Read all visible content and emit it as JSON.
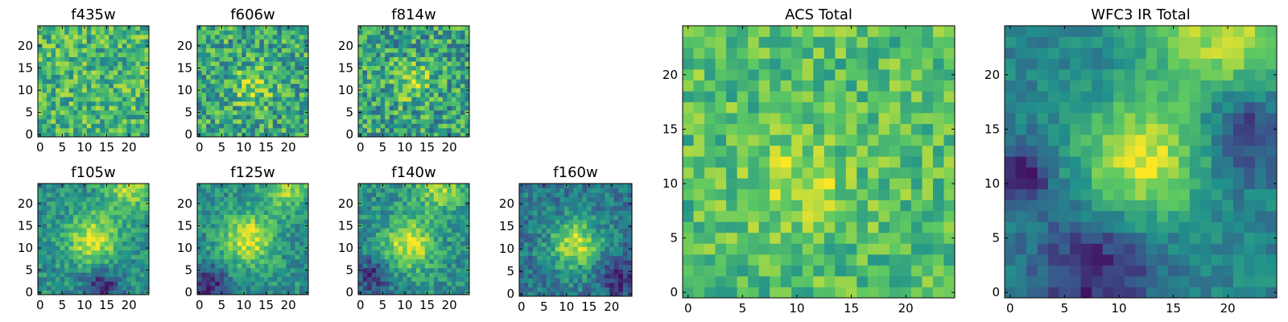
{
  "figure": {
    "colormap": "viridis",
    "colormap_colors": [
      "#440154",
      "#3b528b",
      "#21918c",
      "#5ec962",
      "#fde725"
    ]
  },
  "chart_data": [
    {
      "type": "heatmap",
      "title": "f435w",
      "grid_size": 25,
      "xlim": [
        -0.5,
        24.5
      ],
      "ylim": [
        -0.5,
        24.5
      ],
      "xticks": [
        0,
        5,
        10,
        15,
        20
      ],
      "yticks": [
        0,
        5,
        10,
        15,
        20
      ],
      "xlabel": "",
      "ylabel": "",
      "seed": 11,
      "pattern": {
        "base": 0.66,
        "noise": 0.24,
        "blobs": []
      }
    },
    {
      "type": "heatmap",
      "title": "f606w",
      "grid_size": 25,
      "xlim": [
        -0.5,
        24.5
      ],
      "ylim": [
        -0.5,
        24.5
      ],
      "xticks": [
        0,
        5,
        10,
        15,
        20
      ],
      "yticks": [
        0,
        5,
        10,
        15,
        20
      ],
      "xlabel": "",
      "ylabel": "",
      "seed": 23,
      "pattern": {
        "base": 0.6,
        "noise": 0.26,
        "blobs": [
          {
            "x": 12,
            "y": 11,
            "amp": 0.25,
            "r": 3
          }
        ]
      }
    },
    {
      "type": "heatmap",
      "title": "f814w",
      "grid_size": 25,
      "xlim": [
        -0.5,
        24.5
      ],
      "ylim": [
        -0.5,
        24.5
      ],
      "xticks": [
        0,
        5,
        10,
        15,
        20
      ],
      "yticks": [
        0,
        5,
        10,
        15,
        20
      ],
      "xlabel": "",
      "ylabel": "",
      "seed": 37,
      "pattern": {
        "base": 0.58,
        "noise": 0.27,
        "blobs": [
          {
            "x": 12,
            "y": 12,
            "amp": 0.25,
            "r": 3
          }
        ]
      }
    },
    {
      "type": "heatmap",
      "title": "f105w",
      "grid_size": 25,
      "xlim": [
        -0.5,
        24.5
      ],
      "ylim": [
        -0.5,
        24.5
      ],
      "xticks": [
        0,
        5,
        10,
        15,
        20
      ],
      "yticks": [
        0,
        5,
        10,
        15,
        20
      ],
      "xlabel": "",
      "ylabel": "",
      "seed": 41,
      "pattern": {
        "base": 0.5,
        "noise": 0.15,
        "blobs": [
          {
            "x": 12,
            "y": 12,
            "amp": 0.45,
            "r": 4
          },
          {
            "x": 20,
            "y": 24,
            "amp": 0.35,
            "r": 4
          },
          {
            "x": 14,
            "y": 1,
            "amp": -0.4,
            "r": 3
          }
        ]
      }
    },
    {
      "type": "heatmap",
      "title": "f125w",
      "grid_size": 25,
      "xlim": [
        -0.5,
        24.5
      ],
      "ylim": [
        -0.5,
        24.5
      ],
      "xticks": [
        0,
        5,
        10,
        15,
        20
      ],
      "yticks": [
        0,
        5,
        10,
        15,
        20
      ],
      "xlabel": "",
      "ylabel": "",
      "seed": 53,
      "pattern": {
        "base": 0.5,
        "noise": 0.15,
        "blobs": [
          {
            "x": 11,
            "y": 12,
            "amp": 0.45,
            "r": 4
          },
          {
            "x": 20,
            "y": 24,
            "amp": 0.35,
            "r": 4
          },
          {
            "x": 2,
            "y": 2,
            "amp": -0.4,
            "r": 3
          }
        ]
      }
    },
    {
      "type": "heatmap",
      "title": "f140w",
      "grid_size": 25,
      "xlim": [
        -0.5,
        24.5
      ],
      "ylim": [
        -0.5,
        24.5
      ],
      "xticks": [
        0,
        5,
        10,
        15,
        20
      ],
      "yticks": [
        0,
        5,
        10,
        15,
        20
      ],
      "xlabel": "",
      "ylabel": "",
      "seed": 67,
      "pattern": {
        "base": 0.5,
        "noise": 0.16,
        "blobs": [
          {
            "x": 11,
            "y": 11,
            "amp": 0.45,
            "r": 4
          },
          {
            "x": 18,
            "y": 24,
            "amp": 0.35,
            "r": 4
          },
          {
            "x": 3,
            "y": 4,
            "amp": -0.35,
            "r": 3
          }
        ]
      }
    },
    {
      "type": "heatmap",
      "title": "f160w",
      "grid_size": 25,
      "xlim": [
        -0.5,
        24.5
      ],
      "ylim": [
        -0.5,
        24.5
      ],
      "xticks": [
        0,
        5,
        10,
        15,
        20
      ],
      "yticks": [
        0,
        5,
        10,
        15,
        20
      ],
      "xlabel": "",
      "ylabel": "",
      "seed": 79,
      "pattern": {
        "base": 0.4,
        "noise": 0.16,
        "blobs": [
          {
            "x": 12,
            "y": 11,
            "amp": 0.5,
            "r": 4
          },
          {
            "x": 22,
            "y": 4,
            "amp": -0.3,
            "r": 3
          }
        ]
      }
    },
    {
      "type": "heatmap",
      "title": "ACS Total",
      "grid_size": 25,
      "xlim": [
        -0.5,
        24.5
      ],
      "ylim": [
        -0.5,
        24.5
      ],
      "xticks": [
        0,
        5,
        10,
        15,
        20
      ],
      "yticks": [
        0,
        5,
        10,
        15,
        20
      ],
      "xlabel": "",
      "ylabel": "",
      "seed": 91,
      "pattern": {
        "base": 0.7,
        "noise": 0.18,
        "blobs": [
          {
            "x": 10,
            "y": 10,
            "amp": 0.2,
            "r": 3
          }
        ]
      }
    },
    {
      "type": "heatmap",
      "title": "WFC3 IR Total",
      "grid_size": 25,
      "xlim": [
        -0.5,
        24.5
      ],
      "ylim": [
        -0.5,
        24.5
      ],
      "xticks": [
        0,
        5,
        10,
        15,
        20
      ],
      "yticks": [
        0,
        5,
        10,
        15,
        20
      ],
      "xlabel": "",
      "ylabel": "",
      "seed": 103,
      "pattern": {
        "base": 0.45,
        "noise": 0.1,
        "blobs": [
          {
            "x": 12,
            "y": 12,
            "amp": 0.5,
            "r": 4
          },
          {
            "x": 20,
            "y": 24,
            "amp": 0.45,
            "r": 5
          },
          {
            "x": 1,
            "y": 11,
            "amp": -0.4,
            "r": 2
          },
          {
            "x": 22,
            "y": 15,
            "amp": -0.35,
            "r": 3
          },
          {
            "x": 8,
            "y": 2,
            "amp": -0.35,
            "r": 4
          }
        ]
      }
    }
  ]
}
